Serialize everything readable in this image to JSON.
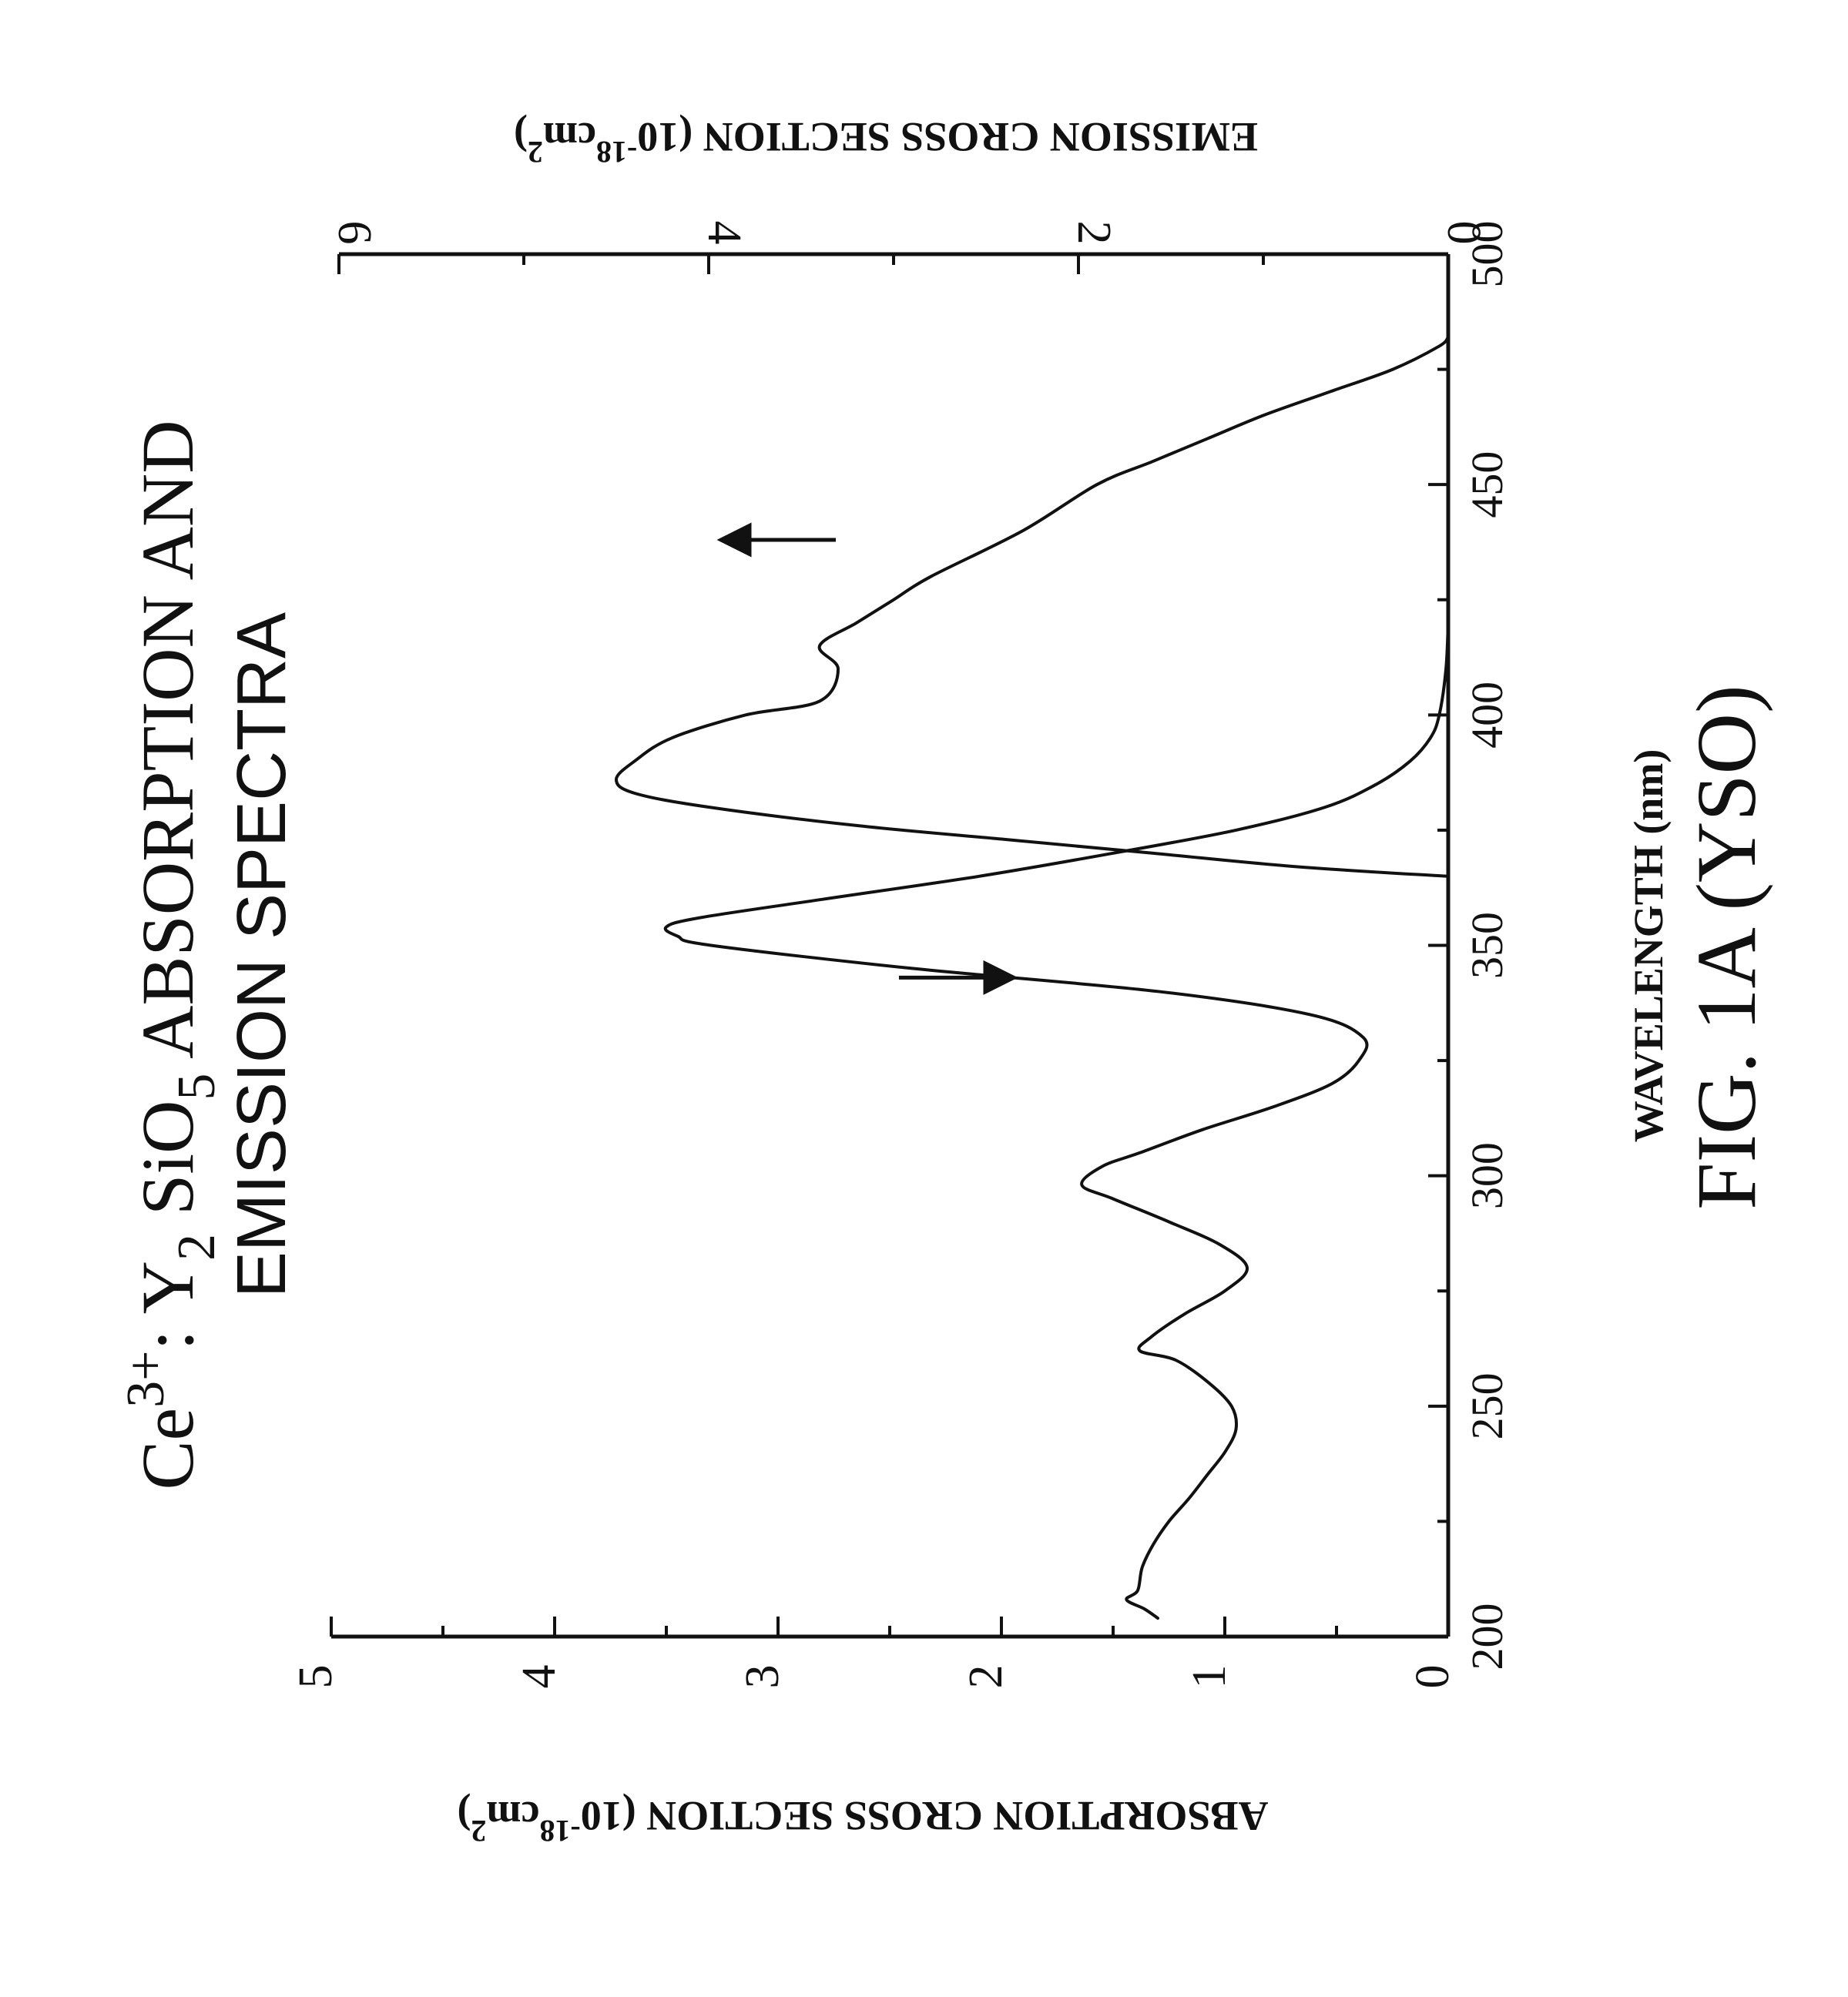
{
  "chart_data": {
    "type": "line",
    "orientation": "rotated-90-clockwise",
    "title": {
      "prefix": "Ce",
      "prefix_sup": "3+",
      "middle": ": Y",
      "middle_sub": "2",
      "compound": " SiO",
      "compound_sub": "5",
      "line1_rest": " ABSORPTION AND",
      "line2": "EMISSION SPECTRA"
    },
    "x_axis": {
      "label": "WAVELENGTH (nm)",
      "ticks": [
        "200",
        "250",
        "300",
        "350",
        "400",
        "450",
        "500"
      ],
      "range": [
        200,
        500
      ]
    },
    "left_axis": {
      "label": "ABSORPTION CROSS SECTION (10",
      "label_exp": "-18",
      "label_unit": "cm",
      "label_unit_exp": "2",
      "label_close": ")",
      "ticks": [
        "0",
        "1",
        "2",
        "3",
        "4",
        "5"
      ],
      "range": [
        0,
        5
      ]
    },
    "right_axis": {
      "label": "EMISSION CROSS SECTION (10",
      "label_exp": "-18",
      "label_unit": "cm",
      "label_unit_exp": "2",
      "label_close": ")",
      "ticks": [
        "0",
        "2",
        "4",
        "6"
      ],
      "range": [
        0,
        6
      ]
    },
    "caption": "FIG. 1A  (YSO)",
    "grid": false,
    "series": [
      {
        "axis": "left",
        "points": [
          [
            204,
            1.3
          ],
          [
            206,
            1.36
          ],
          [
            208,
            1.44
          ],
          [
            210,
            1.39
          ],
          [
            215,
            1.37
          ],
          [
            220,
            1.32
          ],
          [
            225,
            1.25
          ],
          [
            230,
            1.16
          ],
          [
            235,
            1.08
          ],
          [
            240,
            1.0
          ],
          [
            245,
            0.95
          ],
          [
            250,
            0.97
          ],
          [
            255,
            1.07
          ],
          [
            260,
            1.22
          ],
          [
            262,
            1.38
          ],
          [
            265,
            1.33
          ],
          [
            270,
            1.18
          ],
          [
            275,
            1.0
          ],
          [
            280,
            0.9
          ],
          [
            285,
            1.02
          ],
          [
            290,
            1.25
          ],
          [
            295,
            1.5
          ],
          [
            298,
            1.64
          ],
          [
            302,
            1.55
          ],
          [
            305,
            1.38
          ],
          [
            310,
            1.1
          ],
          [
            315,
            0.78
          ],
          [
            320,
            0.52
          ],
          [
            325,
            0.4
          ],
          [
            330,
            0.38
          ],
          [
            335,
            0.62
          ],
          [
            340,
            1.3
          ],
          [
            345,
            2.4
          ],
          [
            350,
            3.3
          ],
          [
            352,
            3.45
          ],
          [
            354,
            3.5
          ],
          [
            356,
            3.35
          ],
          [
            360,
            2.8
          ],
          [
            365,
            2.1
          ],
          [
            370,
            1.5
          ],
          [
            375,
            0.95
          ],
          [
            380,
            0.55
          ],
          [
            385,
            0.32
          ],
          [
            390,
            0.17
          ],
          [
            395,
            0.08
          ],
          [
            400,
            0.04
          ],
          [
            410,
            0.01
          ],
          [
            420,
            0.0
          ]
        ]
      },
      {
        "axis": "right",
        "points": [
          [
            365,
            0.0
          ],
          [
            367,
            0.8
          ],
          [
            370,
            1.6
          ],
          [
            373,
            2.4
          ],
          [
            376,
            3.2
          ],
          [
            380,
            4.0
          ],
          [
            383,
            4.4
          ],
          [
            386,
            4.5
          ],
          [
            390,
            4.4
          ],
          [
            395,
            4.2
          ],
          [
            400,
            3.8
          ],
          [
            403,
            3.4
          ],
          [
            410,
            3.3
          ],
          [
            415,
            3.4
          ],
          [
            420,
            3.2
          ],
          [
            425,
            3.0
          ],
          [
            430,
            2.8
          ],
          [
            440,
            2.3
          ],
          [
            450,
            1.9
          ],
          [
            455,
            1.6
          ],
          [
            460,
            1.3
          ],
          [
            465,
            1.0
          ],
          [
            470,
            0.65
          ],
          [
            475,
            0.3
          ],
          [
            480,
            0.05
          ],
          [
            482,
            0.0
          ]
        ]
      }
    ],
    "annotations": [
      {
        "type": "arrow",
        "direction": "toward-left-axis",
        "wavelength": 343,
        "level": 2.2
      },
      {
        "type": "arrow",
        "direction": "toward-right-axis",
        "wavelength": 438,
        "level": 3.0
      }
    ]
  }
}
